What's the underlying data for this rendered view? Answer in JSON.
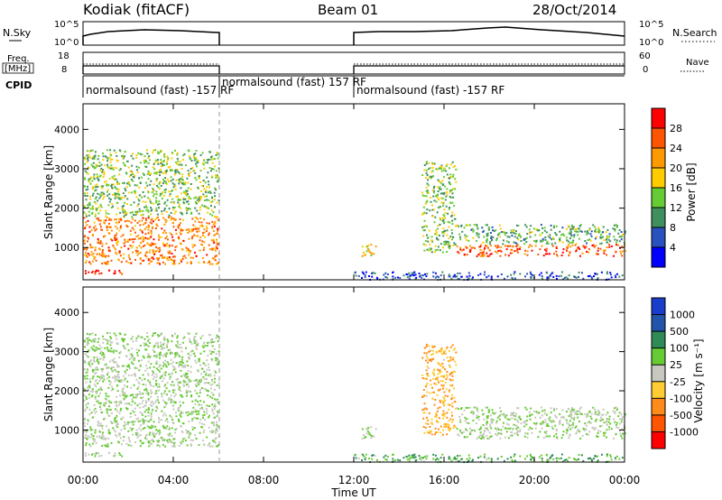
{
  "header": {
    "station": "Kodiak (fitACF)",
    "beam": "Beam 01",
    "date": "28/Oct/2014"
  },
  "strip_labels": {
    "nsky": "N.Sky",
    "nsearch": "N.Search",
    "freq_line1": "Freq.",
    "freq_line2": "[MHz]",
    "nave": "Nave",
    "cpid": "CPID",
    "noise_ticks_left": [
      "10^5",
      "10^0"
    ],
    "noise_ticks_right": [
      "10^5",
      "10^0"
    ],
    "freq_ticks": [
      "18",
      "8"
    ],
    "nave_ticks": [
      "60",
      "0"
    ]
  },
  "cpid_segments": [
    {
      "text": "normalsound (fast) -157 RF"
    },
    {
      "text": "normalsound (fast) 157 RF"
    },
    {
      "text": "normalsound (fast) -157 RF"
    }
  ],
  "colors": {
    "power_scale": [
      "#0000ff",
      "#2a52be",
      "#3f8f5f",
      "#66cc33",
      "#ffcc00",
      "#ff9900",
      "#ff5500",
      "#ff0000"
    ],
    "velocity_scale": [
      "#ff0000",
      "#ff5500",
      "#ff8c1a",
      "#ffcc33",
      "#c8c8c0",
      "#66cc33",
      "#2e8b57",
      "#2255aa",
      "#1a3ecc"
    ]
  },
  "chart_data": {
    "type": "heatmap",
    "time_axis": {
      "ticks": [
        "00:00",
        "04:00",
        "08:00",
        "12:00",
        "16:00",
        "20:00",
        "00:00"
      ],
      "label": "Time UT",
      "range_hours": [
        0,
        24
      ]
    },
    "range_axis": {
      "label": "Slant Range [km]",
      "ticks": [
        "1000",
        "2000",
        "3000",
        "4000"
      ],
      "range_km": [
        180,
        4650
      ]
    },
    "power_panel": {
      "colorbar_label": "Power [dB]",
      "colorbar_ticks": [
        "4",
        "8",
        "12",
        "16",
        "20",
        "24",
        "28"
      ],
      "range": [
        0,
        32
      ]
    },
    "velocity_panel": {
      "colorbar_label": "Velocity [m s⁻¹]",
      "colorbar_ticks": [
        "1000",
        "500",
        "100",
        "25",
        "-25",
        "-100",
        "-500",
        "-1000"
      ]
    },
    "data_gap_hours": [
      6.0,
      12.0
    ],
    "scatter_regions": [
      {
        "t0": 0.0,
        "t1": 6.0,
        "r0": 600,
        "r1": 1800,
        "power": 24,
        "velocity": 25
      },
      {
        "t0": 0.0,
        "t1": 6.0,
        "r0": 1800,
        "r1": 3500,
        "power": 14,
        "velocity": 25
      },
      {
        "t0": 0.0,
        "t1": 1.8,
        "r0": 350,
        "r1": 450,
        "power": 30,
        "velocity": 25
      },
      {
        "t0": 12.3,
        "t1": 13.0,
        "r0": 800,
        "r1": 1100,
        "power": 18,
        "velocity": 25
      },
      {
        "t0": 15.0,
        "t1": 16.5,
        "r0": 900,
        "r1": 3200,
        "power": 14,
        "velocity": -100
      },
      {
        "t0": 16.5,
        "t1": 24.0,
        "r0": 800,
        "r1": 1100,
        "power": 26,
        "velocity": 25
      },
      {
        "t0": 16.5,
        "t1": 24.0,
        "r0": 1100,
        "r1": 1600,
        "power": 12,
        "velocity": 25
      },
      {
        "t0": 12.0,
        "t1": 24.0,
        "r0": 200,
        "r1": 400,
        "power": 6,
        "velocity": 100
      }
    ]
  }
}
